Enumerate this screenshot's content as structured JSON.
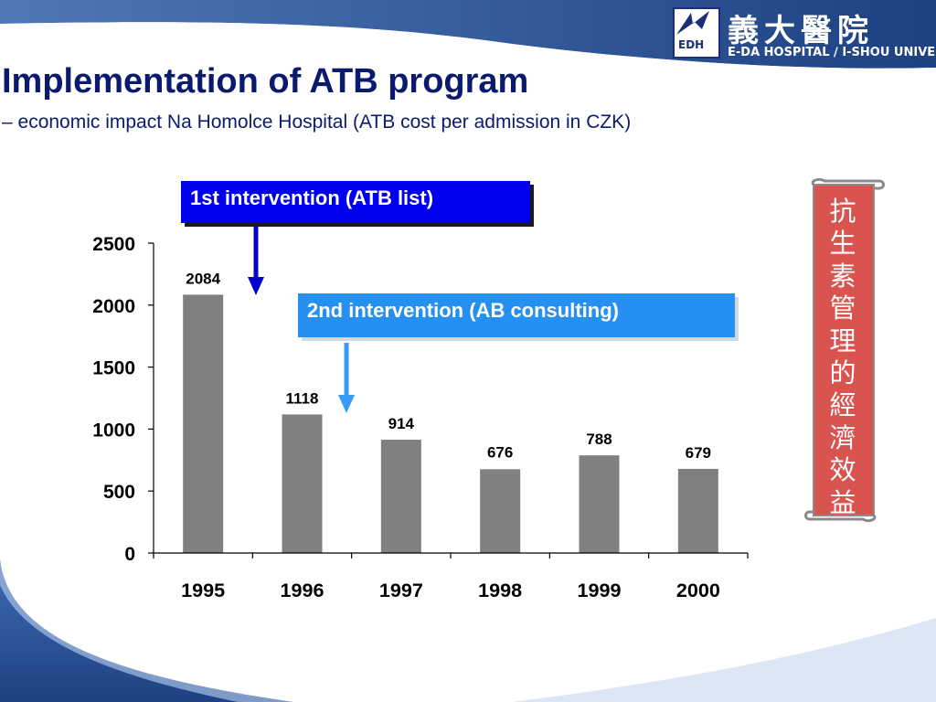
{
  "slide": {
    "title": "Implementation of ATB program",
    "subtitle": "– economic impact Na Homolce Hospital (ATB cost per admission in CZK)"
  },
  "logo": {
    "box_text": "EDH",
    "chinese": "義大醫院",
    "english": "E-DA HOSPITAL ∕ I-SHOU UNIVERSITY"
  },
  "annotations": {
    "first_intervention": "1st intervention (ATB list)",
    "second_intervention": "2nd intervention (AB consulting)"
  },
  "scroll_banner": {
    "text": "抗生素管理的經濟效益"
  },
  "colors": {
    "title": "#0a1a6e",
    "bar": "#808080",
    "callout_1": "#0000ee",
    "callout_2": "#2590f2",
    "arrow_1": "#0000cc",
    "arrow_2": "#3a9af5",
    "banner": "#d9534f",
    "wave": "#2a5598"
  },
  "chart_data": {
    "type": "bar",
    "categories": [
      "1995",
      "1996",
      "1997",
      "1998",
      "1999",
      "2000"
    ],
    "values": [
      2084,
      1118,
      914,
      676,
      788,
      679
    ],
    "data_labels": [
      "2084",
      "1118",
      "914",
      "676",
      "788",
      "679"
    ],
    "y_ticks": [
      "0",
      "500",
      "1000",
      "1500",
      "2000",
      "2500"
    ],
    "ylim": [
      0,
      2500
    ],
    "grid": false,
    "legend": "none",
    "title": "",
    "xlabel": "",
    "ylabel": ""
  }
}
